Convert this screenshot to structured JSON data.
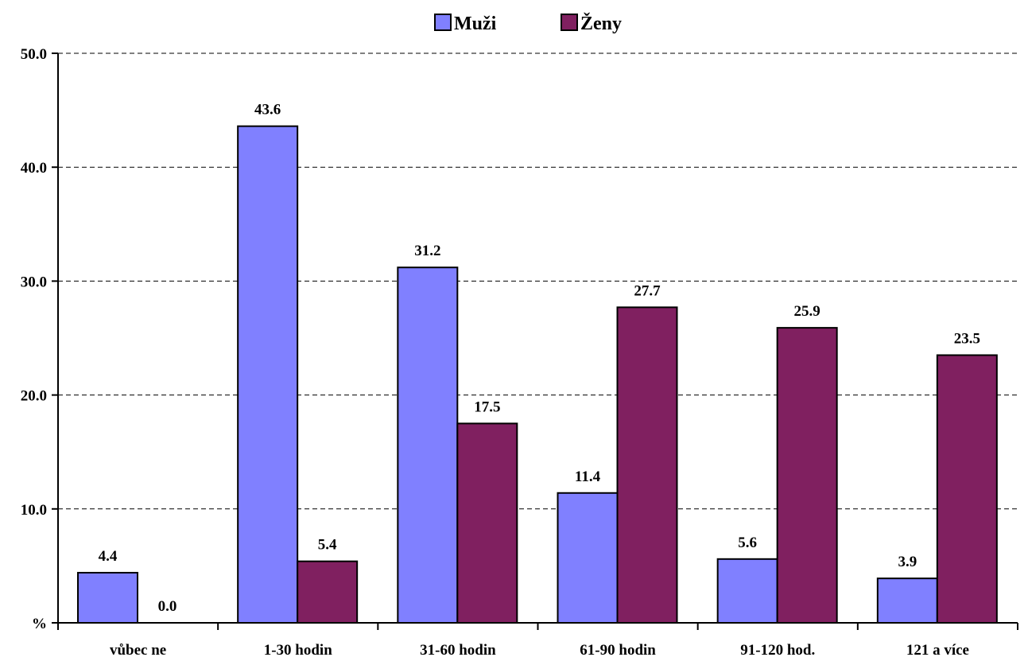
{
  "chart_data": {
    "type": "bar",
    "categories": [
      "vůbec ne",
      "1-30 hodin",
      "31-60 hodin",
      "61-90 hodin",
      "91-120 hod.",
      "121 a více"
    ],
    "series": [
      {
        "name": "Muži",
        "values": [
          4.4,
          43.6,
          31.2,
          11.4,
          5.6,
          3.9
        ],
        "color": "#8080ff"
      },
      {
        "name": "Ženy",
        "values": [
          0.0,
          5.4,
          17.5,
          27.7,
          25.9,
          23.5
        ],
        "color": "#802060"
      }
    ],
    "data_labels": [
      [
        "4.4",
        "43.6",
        "31.2",
        "11.4",
        "5.6",
        "3.9"
      ],
      [
        "0.0",
        "5.4",
        "17.5",
        "27.7",
        "25.9",
        "23.5"
      ]
    ],
    "yticks": [
      "%",
      "10.0",
      "20.0",
      "30.0",
      "40.0",
      "50.0"
    ],
    "ylim": [
      0,
      50
    ],
    "grid": true,
    "grid_style": "dashed",
    "legend_position": "top-center"
  }
}
